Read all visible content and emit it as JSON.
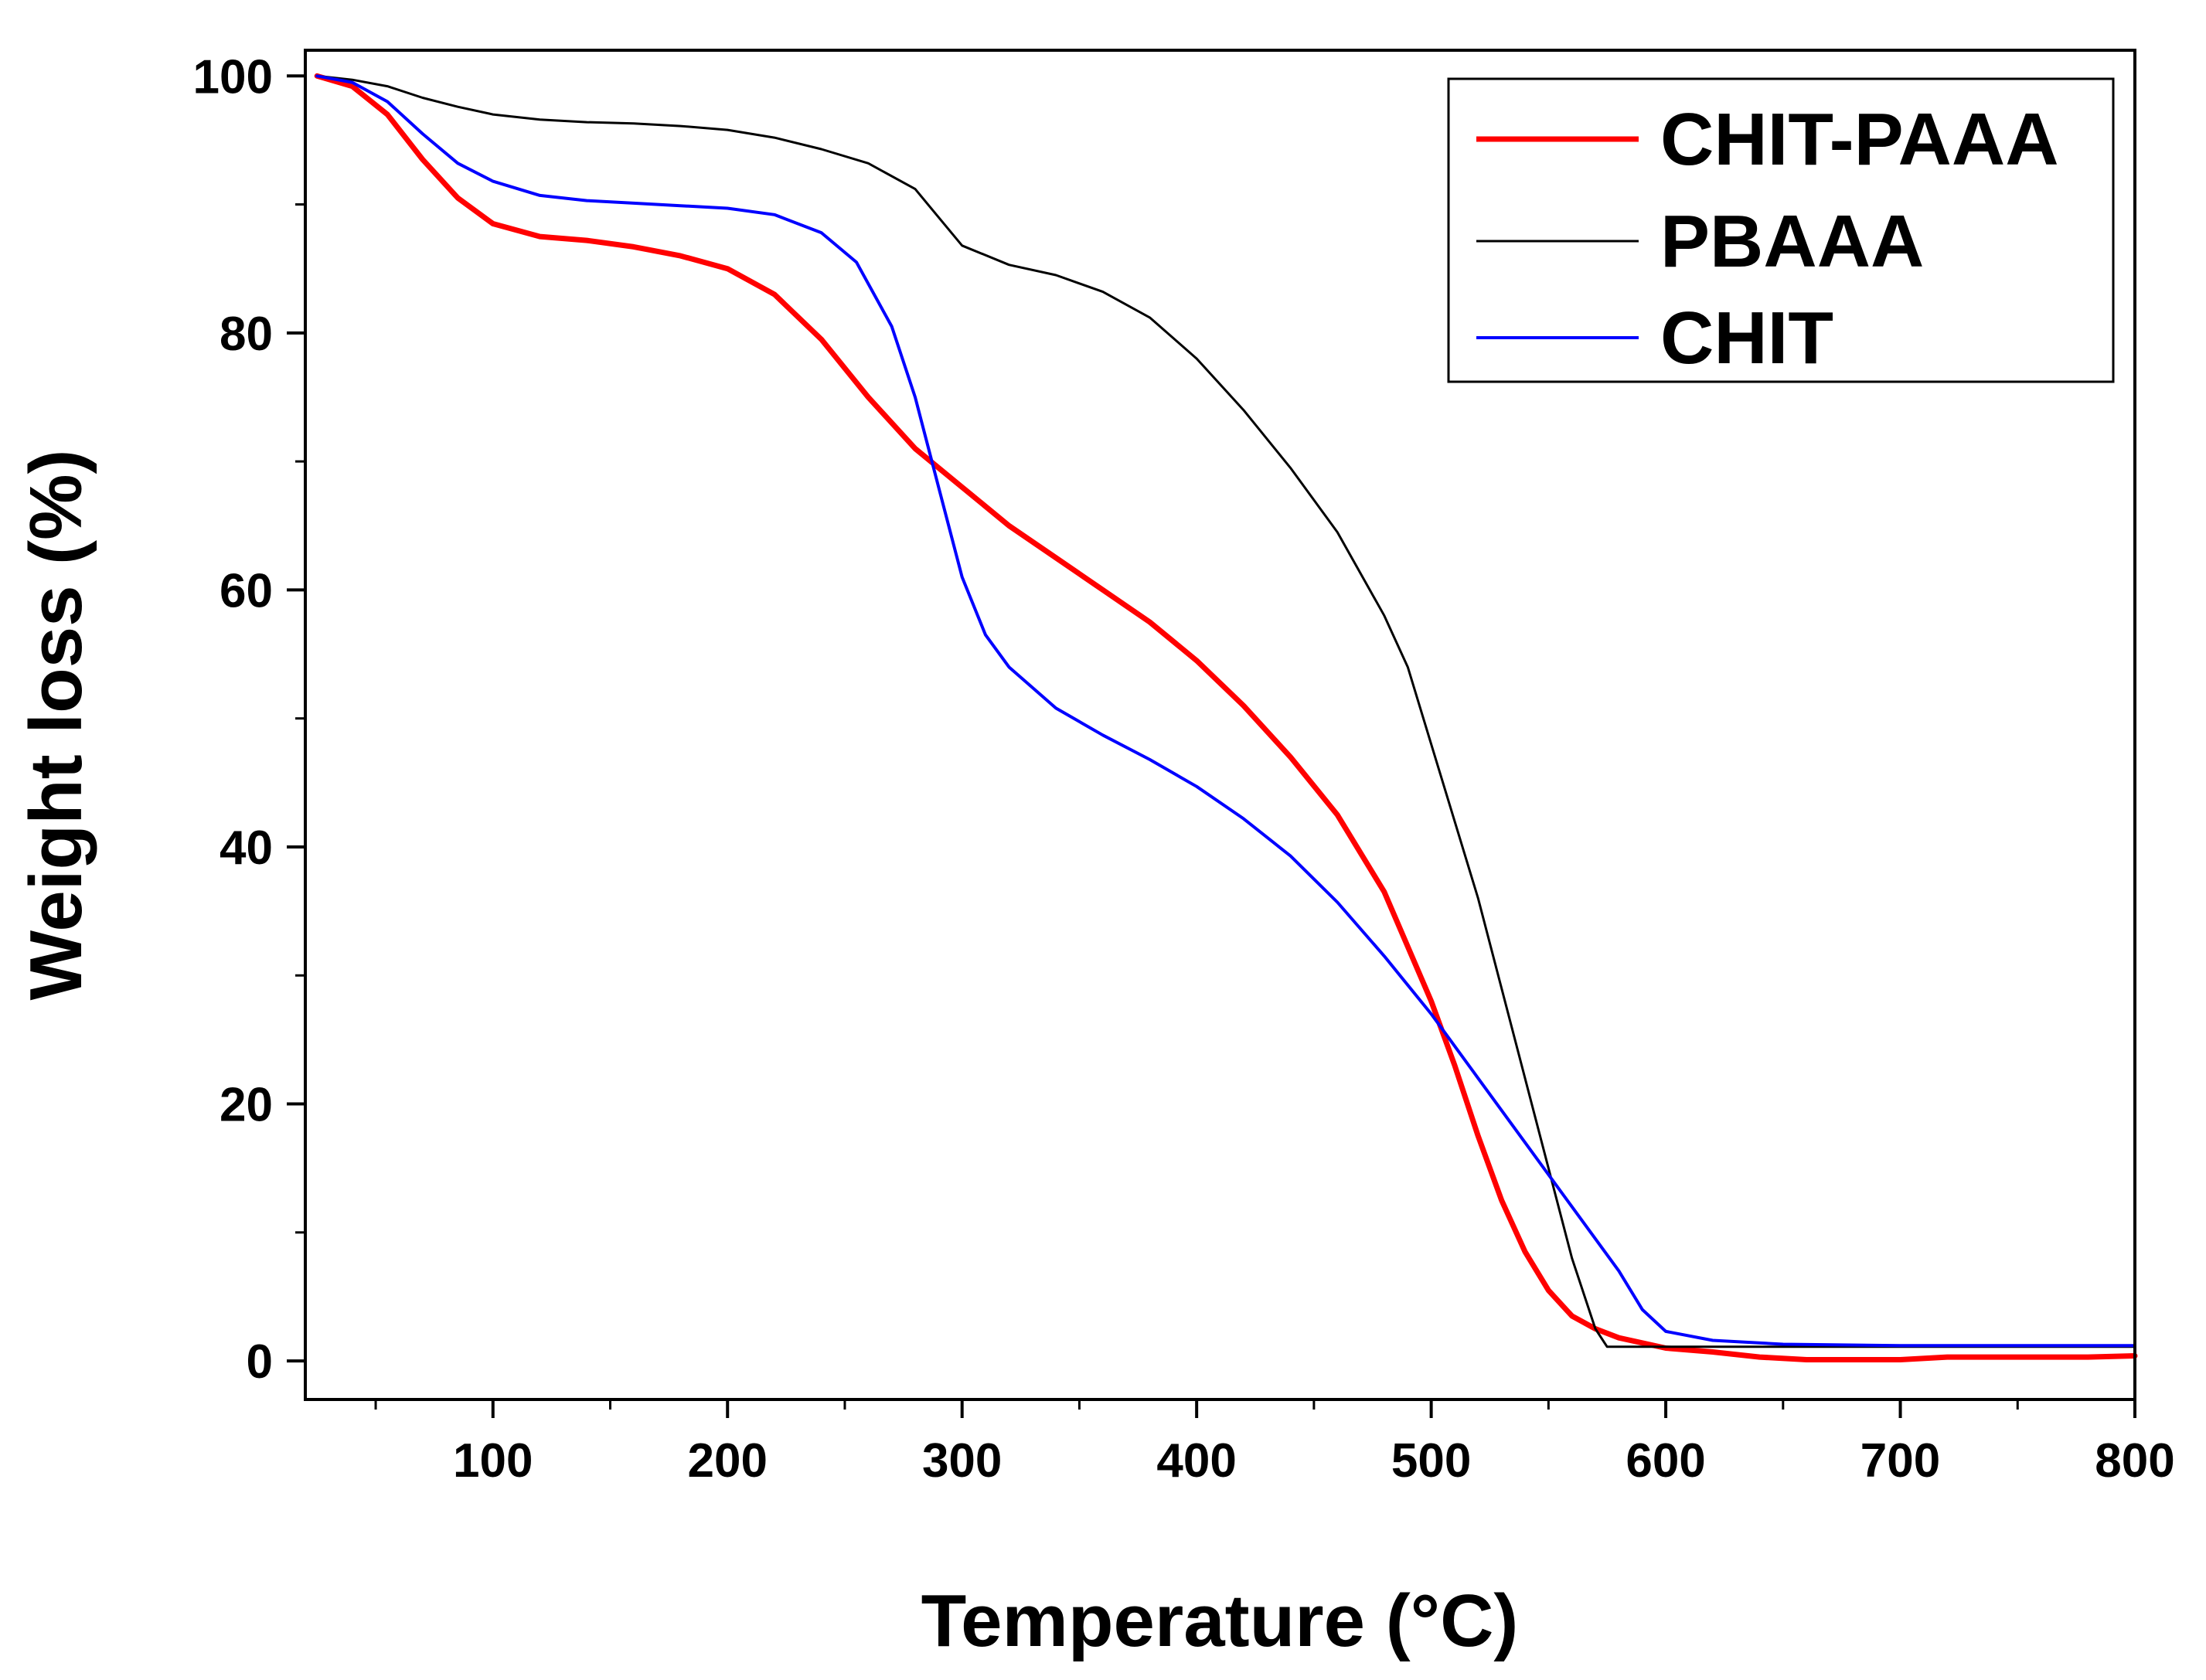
{
  "chart_data": {
    "type": "line",
    "title": "",
    "xlabel": "Temperature (°C)",
    "ylabel": "Weight loss (%)",
    "xlim": [
      20,
      800
    ],
    "ylim": [
      -3,
      102
    ],
    "x_ticks": [
      100,
      200,
      300,
      400,
      500,
      600,
      700,
      800
    ],
    "x_tick_labels": [
      "100",
      "200",
      "300",
      "400",
      "500",
      "600",
      "700",
      "800"
    ],
    "x_minor_ticks": [
      50,
      150,
      250,
      350,
      450,
      550,
      650,
      750
    ],
    "y_ticks": [
      0,
      20,
      40,
      60,
      80,
      100
    ],
    "y_tick_labels": [
      "0",
      "20",
      "40",
      "60",
      "80",
      "100"
    ],
    "y_minor_ticks": [
      10,
      30,
      50,
      70,
      90
    ],
    "grid": false,
    "legend_position": "top-right",
    "series": [
      {
        "name": "CHIT-PAAA",
        "color": "#ff0000",
        "x": [
          25,
          40,
          55,
          70,
          85,
          100,
          120,
          140,
          160,
          180,
          200,
          220,
          240,
          260,
          280,
          300,
          320,
          340,
          360,
          380,
          400,
          420,
          440,
          460,
          480,
          500,
          510,
          520,
          530,
          540,
          550,
          560,
          570,
          580,
          600,
          620,
          640,
          660,
          680,
          700,
          720,
          740,
          760,
          780,
          800
        ],
        "y": [
          100,
          99.2,
          97,
          93.5,
          90.5,
          88.5,
          87.5,
          87.2,
          86.7,
          86,
          85,
          83,
          79.5,
          75,
          71,
          68,
          65,
          62.5,
          60,
          57.5,
          54.5,
          51,
          47,
          42.5,
          36.5,
          28,
          23,
          17.5,
          12.5,
          8.5,
          5.5,
          3.5,
          2.5,
          1.8,
          1.0,
          0.7,
          0.3,
          0.1,
          0.1,
          0.1,
          0.3,
          0.3,
          0.3,
          0.3,
          0.4
        ]
      },
      {
        "name": "PBAAA",
        "color": "#000000",
        "x": [
          25,
          40,
          55,
          70,
          85,
          100,
          120,
          140,
          160,
          180,
          200,
          220,
          240,
          260,
          280,
          290,
          300,
          320,
          340,
          360,
          380,
          400,
          420,
          440,
          460,
          480,
          490,
          500,
          520,
          540,
          560,
          570,
          575,
          600,
          650,
          700,
          750,
          800
        ],
        "y": [
          100,
          99.7,
          99.2,
          98.3,
          97.6,
          97,
          96.6,
          96.4,
          96.3,
          96.1,
          95.8,
          95.2,
          94.3,
          93.2,
          91.2,
          89,
          86.8,
          85.3,
          84.5,
          83.2,
          81.2,
          78,
          74,
          69.5,
          64.5,
          58,
          54,
          48,
          36,
          22,
          8,
          2.5,
          1.1,
          1.1,
          1.1,
          1.1,
          1.1,
          1.1
        ]
      },
      {
        "name": "CHIT",
        "color": "#0000ff",
        "x": [
          25,
          40,
          55,
          70,
          85,
          100,
          120,
          140,
          160,
          180,
          200,
          220,
          240,
          255,
          270,
          280,
          290,
          300,
          310,
          320,
          340,
          360,
          380,
          400,
          420,
          440,
          460,
          480,
          500,
          520,
          540,
          560,
          580,
          590,
          600,
          620,
          650,
          700,
          750,
          800
        ],
        "y": [
          100,
          99.5,
          98,
          95.5,
          93.2,
          91.8,
          90.7,
          90.3,
          90.1,
          89.9,
          89.7,
          89.2,
          87.8,
          85.5,
          80.5,
          75,
          68,
          61,
          56.5,
          54,
          50.8,
          48.7,
          46.8,
          44.7,
          42.2,
          39.3,
          35.7,
          31.5,
          27,
          22,
          17,
          12,
          7,
          4,
          2.3,
          1.6,
          1.3,
          1.2,
          1.2,
          1.2
        ]
      }
    ]
  }
}
